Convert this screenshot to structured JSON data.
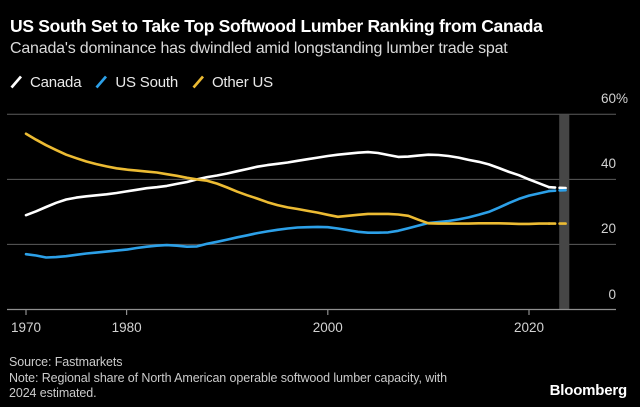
{
  "header": {
    "title": "US South Set to Take Top Softwood Lumber Ranking from Canada",
    "subtitle": "Canada's dominance has dwindled amid longstanding lumber trade spat"
  },
  "chart_data": {
    "type": "line",
    "title": "US South Set to Take Top Softwood Lumber Ranking from Canada",
    "subtitle": "Canada's dominance has dwindled amid longstanding lumber trade spat",
    "ylabel": "",
    "xlabel": "",
    "ylim": [
      0,
      60
    ],
    "unit": "%",
    "grid": "horizontal gridlines at 20/40/60, labels on right",
    "legend_position": "top-left",
    "x_ticks": {
      "values": [
        1970,
        1980,
        2000,
        2020
      ],
      "labels": [
        "1970",
        "1980",
        "2000",
        "2020"
      ]
    },
    "y_ticks": {
      "values": [
        60,
        40,
        20,
        0
      ],
      "labels": [
        "60%",
        "40",
        "20",
        "0"
      ]
    },
    "estimated_from_year": 2022,
    "highlight_band_years": [
      2023,
      2024
    ],
    "series": [
      {
        "name": "Canada",
        "color": "#ffffff",
        "points": [
          [
            1970,
            29
          ],
          [
            1971,
            30.2
          ],
          [
            1972,
            31.5
          ],
          [
            1973,
            32.8
          ],
          [
            1974,
            33.8
          ],
          [
            1975,
            34.4
          ],
          [
            1976,
            34.8
          ],
          [
            1977,
            35.1
          ],
          [
            1978,
            35.4
          ],
          [
            1979,
            35.8
          ],
          [
            1980,
            36.3
          ],
          [
            1981,
            36.8
          ],
          [
            1982,
            37.3
          ],
          [
            1983,
            37.6
          ],
          [
            1984,
            38
          ],
          [
            1985,
            38.6
          ],
          [
            1986,
            39.2
          ],
          [
            1987,
            40
          ],
          [
            1988,
            40.7
          ],
          [
            1989,
            41.2
          ],
          [
            1990,
            41.8
          ],
          [
            1991,
            42.5
          ],
          [
            1992,
            43.2
          ],
          [
            1993,
            43.9
          ],
          [
            1994,
            44.4
          ],
          [
            1995,
            44.8
          ],
          [
            1996,
            45.2
          ],
          [
            1997,
            45.7
          ],
          [
            1998,
            46.2
          ],
          [
            1999,
            46.7
          ],
          [
            2000,
            47.2
          ],
          [
            2001,
            47.6
          ],
          [
            2002,
            47.9
          ],
          [
            2003,
            48.2
          ],
          [
            2004,
            48.4
          ],
          [
            2005,
            48.1
          ],
          [
            2006,
            47.5
          ],
          [
            2007,
            46.9
          ],
          [
            2008,
            47
          ],
          [
            2009,
            47.3
          ],
          [
            2010,
            47.6
          ],
          [
            2011,
            47.5
          ],
          [
            2012,
            47.2
          ],
          [
            2013,
            46.7
          ],
          [
            2014,
            46
          ],
          [
            2015,
            45.4
          ],
          [
            2016,
            44.6
          ],
          [
            2017,
            43.5
          ],
          [
            2018,
            42.3
          ],
          [
            2019,
            41.3
          ],
          [
            2020,
            40
          ],
          [
            2021,
            38.8
          ],
          [
            2022,
            37.6
          ],
          [
            2023,
            37.4
          ],
          [
            2024,
            37.3
          ]
        ]
      },
      {
        "name": "US South",
        "color": "#2CA0E8",
        "points": [
          [
            1970,
            17
          ],
          [
            1971,
            16.6
          ],
          [
            1972,
            16
          ],
          [
            1973,
            16.1
          ],
          [
            1974,
            16.4
          ],
          [
            1975,
            16.8
          ],
          [
            1976,
            17.2
          ],
          [
            1977,
            17.5
          ],
          [
            1978,
            17.8
          ],
          [
            1979,
            18.1
          ],
          [
            1980,
            18.4
          ],
          [
            1981,
            18.9
          ],
          [
            1982,
            19.3
          ],
          [
            1983,
            19.6
          ],
          [
            1984,
            19.8
          ],
          [
            1985,
            19.6
          ],
          [
            1986,
            19.3
          ],
          [
            1987,
            19.4
          ],
          [
            1988,
            20.2
          ],
          [
            1989,
            20.8
          ],
          [
            1990,
            21.5
          ],
          [
            1991,
            22.2
          ],
          [
            1992,
            22.8
          ],
          [
            1993,
            23.5
          ],
          [
            1994,
            24
          ],
          [
            1995,
            24.5
          ],
          [
            1996,
            24.9
          ],
          [
            1997,
            25.2
          ],
          [
            1998,
            25.3
          ],
          [
            1999,
            25.4
          ],
          [
            2000,
            25.3
          ],
          [
            2001,
            24.9
          ],
          [
            2002,
            24.4
          ],
          [
            2003,
            23.9
          ],
          [
            2004,
            23.6
          ],
          [
            2005,
            23.6
          ],
          [
            2006,
            23.7
          ],
          [
            2007,
            24.2
          ],
          [
            2008,
            25
          ],
          [
            2009,
            25.8
          ],
          [
            2010,
            26.6
          ],
          [
            2011,
            26.9
          ],
          [
            2012,
            27.2
          ],
          [
            2013,
            27.7
          ],
          [
            2014,
            28.3
          ],
          [
            2015,
            29.1
          ],
          [
            2016,
            30
          ],
          [
            2017,
            31.3
          ],
          [
            2018,
            32.7
          ],
          [
            2019,
            34
          ],
          [
            2020,
            35
          ],
          [
            2021,
            35.7
          ],
          [
            2022,
            36.4
          ],
          [
            2023,
            36.6
          ],
          [
            2024,
            36.7
          ]
        ]
      },
      {
        "name": "Other US",
        "color": "#ECBB33",
        "points": [
          [
            1970,
            54
          ],
          [
            1971,
            52.2
          ],
          [
            1972,
            50.5
          ],
          [
            1973,
            49
          ],
          [
            1974,
            47.6
          ],
          [
            1975,
            46.5
          ],
          [
            1976,
            45.5
          ],
          [
            1977,
            44.7
          ],
          [
            1978,
            44
          ],
          [
            1979,
            43.4
          ],
          [
            1980,
            43
          ],
          [
            1981,
            42.7
          ],
          [
            1982,
            42.4
          ],
          [
            1983,
            42.1
          ],
          [
            1984,
            41.6
          ],
          [
            1985,
            41.1
          ],
          [
            1986,
            40.5
          ],
          [
            1987,
            40
          ],
          [
            1988,
            39.6
          ],
          [
            1989,
            38.7
          ],
          [
            1990,
            37.5
          ],
          [
            1991,
            36.2
          ],
          [
            1992,
            35.1
          ],
          [
            1993,
            34.1
          ],
          [
            1994,
            33
          ],
          [
            1995,
            32.1
          ],
          [
            1996,
            31.4
          ],
          [
            1997,
            30.9
          ],
          [
            1998,
            30.3
          ],
          [
            1999,
            29.8
          ],
          [
            2000,
            29.1
          ],
          [
            2001,
            28.5
          ],
          [
            2002,
            28.8
          ],
          [
            2003,
            29.1
          ],
          [
            2004,
            29.4
          ],
          [
            2005,
            29.4
          ],
          [
            2006,
            29.4
          ],
          [
            2007,
            29.2
          ],
          [
            2008,
            28.8
          ],
          [
            2009,
            27.6
          ],
          [
            2010,
            26.5
          ],
          [
            2011,
            26.4
          ],
          [
            2012,
            26.4
          ],
          [
            2013,
            26.4
          ],
          [
            2014,
            26.4
          ],
          [
            2015,
            26.5
          ],
          [
            2016,
            26.5
          ],
          [
            2017,
            26.5
          ],
          [
            2018,
            26.4
          ],
          [
            2019,
            26.3
          ],
          [
            2020,
            26.3
          ],
          [
            2021,
            26.4
          ],
          [
            2022,
            26.4
          ],
          [
            2023,
            26.4
          ],
          [
            2024,
            26.4
          ]
        ]
      }
    ]
  },
  "colors": {
    "background": "#000000",
    "gridline": "#5c5c5c",
    "axis": "#8f8f8f",
    "highlight_band": "#464646",
    "axis_label": "#d2d2d2"
  },
  "footer": {
    "source": "Source: Fastmarkets",
    "note_line1": "Note: Regional share of North American operable softwood lumber capacity, with",
    "note_line2": "2024 estimated.",
    "brand": "Bloomberg"
  }
}
